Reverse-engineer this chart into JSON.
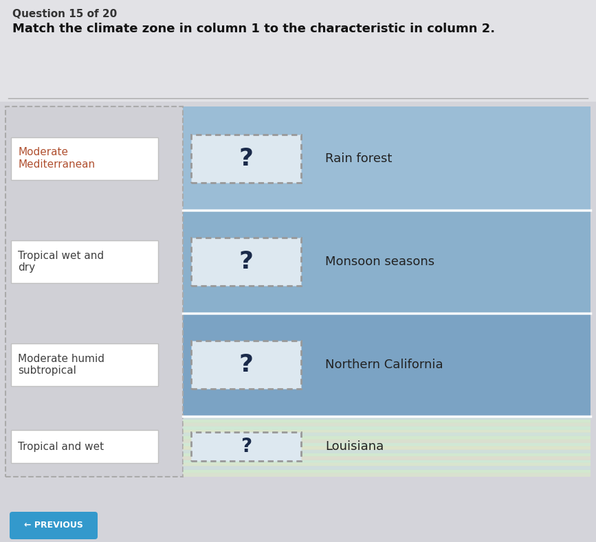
{
  "title_question": "Question 15 of 20",
  "subtitle": "Match the climate zone in column 1 to the characteristic in column 2.",
  "col1_items": [
    "Moderate\nMediterranean",
    "Tropical wet and\ndry",
    "Moderate humid\nsubtropical",
    "Tropical and wet"
  ],
  "col2_items": [
    "Rain forest",
    "Monsoon seasons",
    "Northern California",
    "Louisiana"
  ],
  "question_marks": [
    "?",
    "?",
    "?",
    "?"
  ],
  "overall_bg": "#d4d4da",
  "header_bg": "#e2e2e6",
  "left_panel_bg": "#d0d0d6",
  "row1_color": "#9bbdd6",
  "row2_color": "#8ab0cc",
  "row3_color": "#7ba3c4",
  "row4_color": "#d4e8d4",
  "left_box_bg": "#ffffff",
  "left_box_border": "#c8c8c8",
  "col1_text_colors": [
    "#b05030",
    "#404040",
    "#404040",
    "#404040"
  ],
  "answer_box_bg": "#dce8f0",
  "dashed_border_color": "#999999",
  "col2_text_color": "#222222",
  "previous_btn_color": "#3399cc",
  "previous_btn_text": "← PREVIOUS",
  "title_fontsize": 11,
  "subtitle_fontsize": 13,
  "item_fontsize": 11,
  "qmark_fontsize": 26,
  "col2_fontsize": 13
}
